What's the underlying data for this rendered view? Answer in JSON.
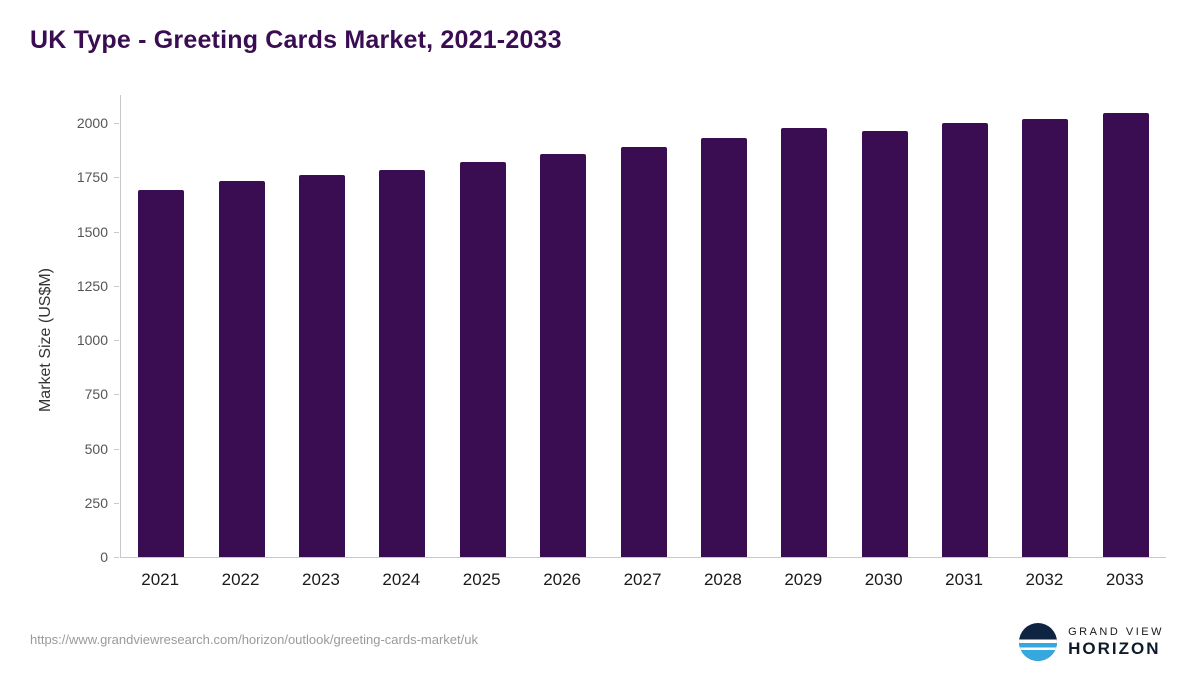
{
  "header": {
    "title": "UK Type - Greeting Cards Market, 2021-2033"
  },
  "footer": {
    "source_url": "https://www.grandviewresearch.com/horizon/outlook/greeting-cards-market/uk",
    "logo_line1": "GRAND VIEW",
    "logo_line2": "HORIZON"
  },
  "chart_data": {
    "type": "bar",
    "title": "UK Type - Greeting Cards Market, 2021-2033",
    "categories": [
      "2021",
      "2022",
      "2023",
      "2024",
      "2025",
      "2026",
      "2027",
      "2028",
      "2029",
      "2030",
      "2031",
      "2032",
      "2033"
    ],
    "values": [
      1690,
      1735,
      1760,
      1785,
      1820,
      1855,
      1890,
      1930,
      1975,
      1965,
      2000,
      2020,
      2045
    ],
    "xlabel": "",
    "ylabel": "Market Size (US$M)",
    "ylim": [
      0,
      2000
    ],
    "yticks": [
      0,
      250,
      500,
      750,
      1000,
      1250,
      1500,
      1750,
      2000
    ],
    "bar_color": "#3a0d53",
    "title_color": "#3a0d53",
    "grid": false,
    "legend": false
  }
}
